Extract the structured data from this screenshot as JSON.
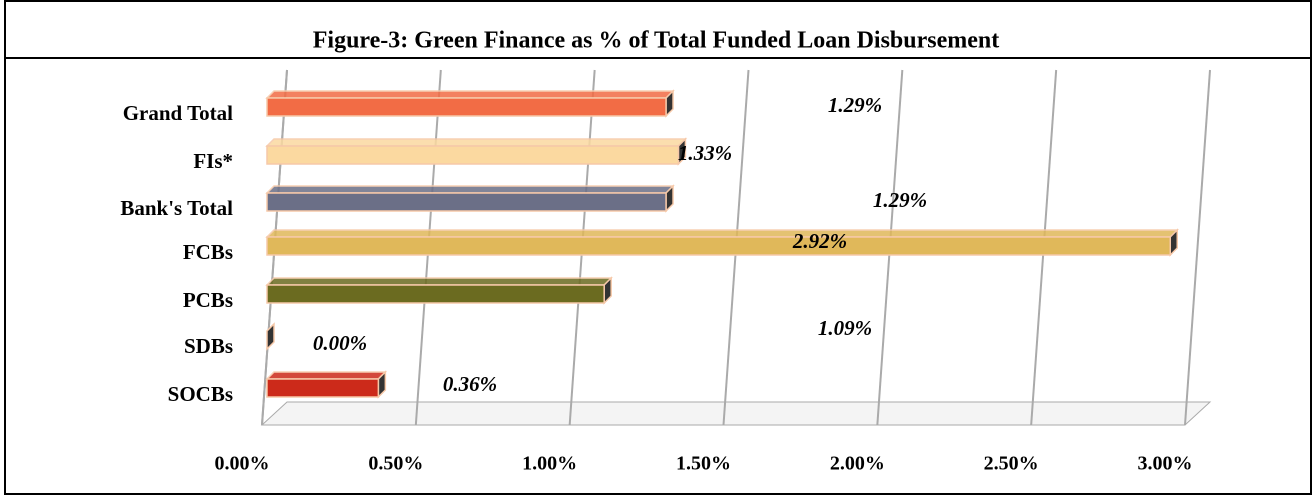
{
  "chart_data": {
    "type": "bar",
    "orientation": "horizontal",
    "three_d": true,
    "title": "Figure-3: Green Finance as % of Total Funded Loan Disbursement",
    "categories": [
      "Grand Total",
      "FIs*",
      "Bank's Total",
      "FCBs",
      "PCBs",
      "SDBs",
      "SOCBs"
    ],
    "values": [
      1.29,
      1.33,
      1.29,
      2.92,
      1.09,
      0.0,
      0.36
    ],
    "value_labels": [
      "1.29%",
      "1.33%",
      "1.29%",
      "2.92%",
      "1.09%",
      "0.00%",
      "0.36%"
    ],
    "colors": [
      "#f26c45",
      "#fbd9a0",
      "#6b6f87",
      "#e0b85a",
      "#6b6b20",
      "#2f4a5a",
      "#cc2a1a"
    ],
    "xlim": [
      0,
      3
    ],
    "xticks": [
      {
        "value": 0,
        "label": "0.00%"
      },
      {
        "value": 0.5,
        "label": "0.50%"
      },
      {
        "value": 1,
        "label": "1.00%"
      },
      {
        "value": 1.5,
        "label": "1.50%"
      },
      {
        "value": 2,
        "label": "2.00%"
      },
      {
        "value": 2.5,
        "label": "2.50%"
      },
      {
        "value": 3,
        "label": "3.00%"
      }
    ],
    "grid": true
  }
}
